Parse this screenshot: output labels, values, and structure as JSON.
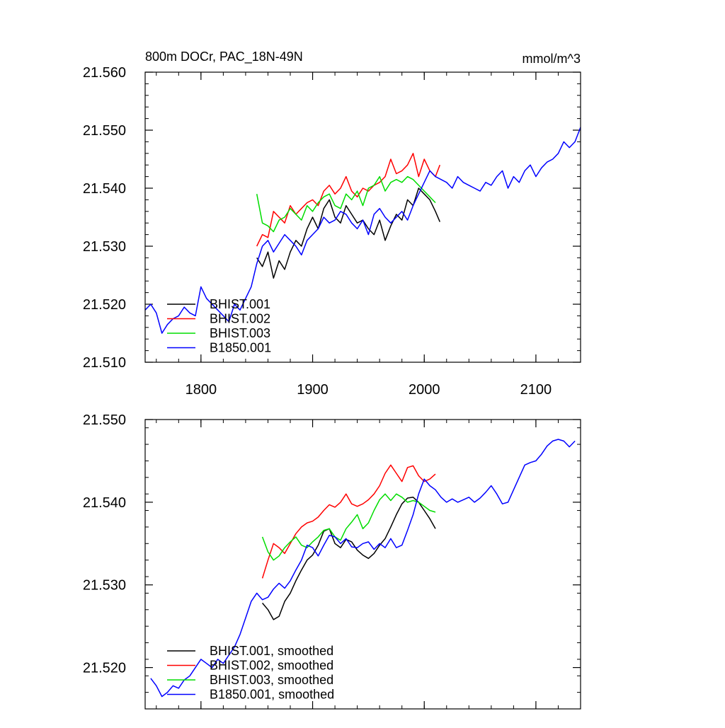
{
  "chart_data": [
    {
      "type": "line",
      "title": "800m DOCr, PAC_18N-49N",
      "units": "mmol/m^3",
      "xlim": [
        1750,
        2140
      ],
      "ylim": [
        21.51,
        21.56
      ],
      "xticks": [
        1800,
        1900,
        2000,
        2100
      ],
      "xtick_labels": [
        "1800",
        "1900",
        "2000",
        "2100"
      ],
      "yticks": [
        21.51,
        21.52,
        21.53,
        21.54,
        21.55,
        21.56
      ],
      "ytick_labels": [
        "21.510",
        "21.520",
        "21.530",
        "21.540",
        "21.550",
        "21.560"
      ],
      "legend": "bottom-left",
      "series": [
        {
          "name": "BHIST.001",
          "color": "#000000",
          "x": [
            1850,
            1855,
            1860,
            1865,
            1870,
            1875,
            1880,
            1885,
            1890,
            1895,
            1900,
            1905,
            1910,
            1915,
            1920,
            1925,
            1930,
            1935,
            1940,
            1945,
            1950,
            1955,
            1960,
            1965,
            1970,
            1975,
            1980,
            1985,
            1990,
            1995,
            2000,
            2005,
            2010,
            2014
          ],
          "y": [
            21.528,
            21.5265,
            21.529,
            21.5245,
            21.5275,
            21.526,
            21.529,
            21.531,
            21.53,
            21.533,
            21.535,
            21.533,
            21.5365,
            21.538,
            21.535,
            21.534,
            21.537,
            21.5355,
            21.534,
            21.5345,
            21.533,
            21.532,
            21.5345,
            21.531,
            21.5335,
            21.5355,
            21.5345,
            21.538,
            21.537,
            21.54,
            21.539,
            21.538,
            21.536,
            21.5342
          ]
        },
        {
          "name": "BHIST.002",
          "color": "#ff0000",
          "x": [
            1850,
            1855,
            1860,
            1865,
            1870,
            1875,
            1880,
            1885,
            1890,
            1895,
            1900,
            1905,
            1910,
            1915,
            1920,
            1925,
            1930,
            1935,
            1940,
            1945,
            1950,
            1955,
            1960,
            1965,
            1970,
            1975,
            1980,
            1985,
            1990,
            1995,
            2000,
            2005,
            2010,
            2014
          ],
          "y": [
            21.53,
            21.532,
            21.5315,
            21.536,
            21.535,
            21.534,
            21.537,
            21.5355,
            21.5365,
            21.5375,
            21.538,
            21.537,
            21.5395,
            21.5405,
            21.539,
            21.54,
            21.542,
            21.5395,
            21.5385,
            21.54,
            21.5395,
            21.5405,
            21.541,
            21.542,
            21.545,
            21.5425,
            21.543,
            21.544,
            21.546,
            21.542,
            21.545,
            21.543,
            21.542,
            21.544
          ]
        },
        {
          "name": "BHIST.003",
          "color": "#00dd00",
          "x": [
            1850,
            1855,
            1860,
            1865,
            1870,
            1875,
            1880,
            1885,
            1890,
            1895,
            1900,
            1905,
            1910,
            1915,
            1920,
            1925,
            1930,
            1935,
            1940,
            1945,
            1950,
            1955,
            1960,
            1965,
            1970,
            1975,
            1980,
            1985,
            1990,
            1995,
            2000,
            2005,
            2010
          ],
          "y": [
            21.539,
            21.534,
            21.5335,
            21.5325,
            21.5345,
            21.535,
            21.5365,
            21.5355,
            21.5345,
            21.537,
            21.536,
            21.5375,
            21.5385,
            21.539,
            21.537,
            21.5365,
            21.539,
            21.538,
            21.5395,
            21.537,
            21.54,
            21.5405,
            21.542,
            21.5395,
            21.541,
            21.5415,
            21.541,
            21.542,
            21.5415,
            21.5405,
            21.5395,
            21.5385,
            21.5375
          ]
        },
        {
          "name": "B1850.001",
          "color": "#0000ff",
          "x": [
            1750,
            1755,
            1760,
            1765,
            1770,
            1775,
            1780,
            1785,
            1790,
            1795,
            1800,
            1805,
            1810,
            1815,
            1820,
            1825,
            1830,
            1835,
            1840,
            1845,
            1850,
            1855,
            1860,
            1865,
            1870,
            1875,
            1880,
            1885,
            1890,
            1895,
            1900,
            1905,
            1910,
            1915,
            1920,
            1925,
            1930,
            1935,
            1940,
            1945,
            1950,
            1955,
            1960,
            1965,
            1970,
            1975,
            1980,
            1985,
            1990,
            1995,
            2000,
            2005,
            2010,
            2015,
            2020,
            2025,
            2030,
            2035,
            2040,
            2045,
            2050,
            2055,
            2060,
            2065,
            2070,
            2075,
            2080,
            2085,
            2090,
            2095,
            2100,
            2105,
            2110,
            2115,
            2120,
            2125,
            2130,
            2135,
            2140
          ],
          "y": [
            21.519,
            21.52,
            21.5185,
            21.515,
            21.5165,
            21.5175,
            21.518,
            21.5195,
            21.5185,
            21.518,
            21.523,
            21.521,
            21.52,
            21.519,
            21.518,
            21.517,
            21.52,
            21.519,
            21.521,
            21.523,
            21.527,
            21.53,
            21.531,
            21.529,
            21.5305,
            21.532,
            21.531,
            21.53,
            21.5285,
            21.531,
            21.532,
            21.533,
            21.535,
            21.534,
            21.5345,
            21.536,
            21.5355,
            21.534,
            21.533,
            21.5345,
            21.532,
            21.5355,
            21.5365,
            21.535,
            21.534,
            21.535,
            21.536,
            21.5345,
            21.537,
            21.539,
            21.541,
            21.543,
            21.542,
            21.5415,
            21.541,
            21.54,
            21.542,
            21.541,
            21.5405,
            21.54,
            21.5395,
            21.541,
            21.5405,
            21.542,
            21.543,
            21.54,
            21.542,
            21.541,
            21.543,
            21.544,
            21.542,
            21.5435,
            21.5445,
            21.545,
            21.546,
            21.548,
            21.547,
            21.548,
            21.5505
          ]
        }
      ]
    },
    {
      "type": "line",
      "title": "",
      "xlim": [
        1750,
        2140
      ],
      "ylim": [
        21.515,
        21.55
      ],
      "xticks": [
        1800,
        1900,
        2000,
        2100
      ],
      "yticks": [
        21.52,
        21.53,
        21.54,
        21.55
      ],
      "ytick_labels": [
        "21.520",
        "21.530",
        "21.540",
        "21.550"
      ],
      "legend": "bottom-left",
      "series": [
        {
          "name": "BHIST.001, smoothed",
          "color": "#000000",
          "x": [
            1855,
            1860,
            1865,
            1870,
            1875,
            1880,
            1885,
            1890,
            1895,
            1900,
            1905,
            1910,
            1915,
            1920,
            1925,
            1930,
            1935,
            1940,
            1945,
            1950,
            1955,
            1960,
            1965,
            1970,
            1975,
            1980,
            1985,
            1990,
            1995,
            2000,
            2005,
            2010
          ],
          "y": [
            21.5278,
            21.527,
            21.5258,
            21.5262,
            21.528,
            21.529,
            21.5305,
            21.5318,
            21.533,
            21.5336,
            21.5348,
            21.5365,
            21.5368,
            21.535,
            21.5345,
            21.5355,
            21.5352,
            21.5342,
            21.5336,
            21.5332,
            21.5338,
            21.5348,
            21.5356,
            21.537,
            21.5385,
            21.5398,
            21.5405,
            21.5406,
            21.54,
            21.539,
            21.538,
            21.5368
          ]
        },
        {
          "name": "BHIST.002, smoothed",
          "color": "#ff0000",
          "x": [
            1855,
            1860,
            1865,
            1870,
            1875,
            1880,
            1885,
            1890,
            1895,
            1900,
            1905,
            1910,
            1915,
            1920,
            1925,
            1930,
            1935,
            1940,
            1945,
            1950,
            1955,
            1960,
            1965,
            1970,
            1975,
            1980,
            1985,
            1990,
            1995,
            2000,
            2005,
            2010
          ],
          "y": [
            21.5308,
            21.533,
            21.535,
            21.5345,
            21.5338,
            21.535,
            21.5362,
            21.537,
            21.5375,
            21.5377,
            21.5382,
            21.539,
            21.5397,
            21.5394,
            21.54,
            21.541,
            21.5398,
            21.5395,
            21.5398,
            21.5403,
            21.541,
            21.542,
            21.5435,
            21.5445,
            21.5435,
            21.5425,
            21.5442,
            21.5444,
            21.5432,
            21.5425,
            21.5428,
            21.5434
          ]
        },
        {
          "name": "BHIST.003, smoothed",
          "color": "#00dd00",
          "x": [
            1855,
            1860,
            1865,
            1870,
            1875,
            1880,
            1885,
            1890,
            1895,
            1900,
            1905,
            1910,
            1915,
            1920,
            1925,
            1930,
            1935,
            1940,
            1945,
            1950,
            1955,
            1960,
            1965,
            1970,
            1975,
            1980,
            1985,
            1990,
            1995,
            2000,
            2005,
            2010
          ],
          "y": [
            21.5358,
            21.534,
            21.533,
            21.5335,
            21.5345,
            21.5352,
            21.5358,
            21.5348,
            21.5345,
            21.5352,
            21.5358,
            21.5366,
            21.5368,
            21.5358,
            21.5354,
            21.5368,
            21.5376,
            21.5385,
            21.5368,
            21.5375,
            21.539,
            21.5403,
            21.541,
            21.5402,
            21.541,
            21.5406,
            21.54,
            21.5402,
            21.54,
            21.5395,
            21.539,
            21.5388
          ]
        },
        {
          "name": "B1850.001, smoothed",
          "color": "#0000ff",
          "x": [
            1755,
            1760,
            1765,
            1770,
            1775,
            1780,
            1785,
            1790,
            1795,
            1800,
            1805,
            1810,
            1815,
            1820,
            1825,
            1830,
            1835,
            1840,
            1845,
            1850,
            1855,
            1860,
            1865,
            1870,
            1875,
            1880,
            1885,
            1890,
            1895,
            1900,
            1905,
            1910,
            1915,
            1920,
            1925,
            1930,
            1935,
            1940,
            1945,
            1950,
            1955,
            1960,
            1965,
            1970,
            1975,
            1980,
            1985,
            1990,
            1995,
            2000,
            2005,
            2010,
            2015,
            2020,
            2025,
            2030,
            2035,
            2040,
            2045,
            2050,
            2055,
            2060,
            2065,
            2070,
            2075,
            2080,
            2085,
            2090,
            2095,
            2100,
            2105,
            2110,
            2115,
            2120,
            2125,
            2130,
            2135
          ],
          "y": [
            21.5187,
            21.5178,
            21.5165,
            21.517,
            21.5178,
            21.5175,
            21.5185,
            21.519,
            21.52,
            21.521,
            21.5205,
            21.52,
            21.521,
            21.5205,
            21.5215,
            21.5225,
            21.524,
            21.526,
            21.528,
            21.529,
            21.5282,
            21.5285,
            21.5295,
            21.5302,
            21.5296,
            21.5305,
            21.5318,
            21.533,
            21.5348,
            21.5345,
            21.5335,
            21.5348,
            21.536,
            21.5358,
            21.535,
            21.5356,
            21.5346,
            21.5345,
            21.535,
            21.5352,
            21.5343,
            21.535,
            21.5345,
            21.5356,
            21.5345,
            21.5348,
            21.5366,
            21.5385,
            21.541,
            21.5428,
            21.542,
            21.5415,
            21.5406,
            21.54,
            21.5404,
            21.54,
            21.5403,
            21.5406,
            21.54,
            21.5405,
            21.5412,
            21.542,
            21.541,
            21.5398,
            21.54,
            21.5415,
            21.543,
            21.5445,
            21.5448,
            21.545,
            21.5458,
            21.5468,
            21.5474,
            21.5476,
            21.5474,
            21.5467,
            21.5474
          ]
        }
      ]
    }
  ]
}
